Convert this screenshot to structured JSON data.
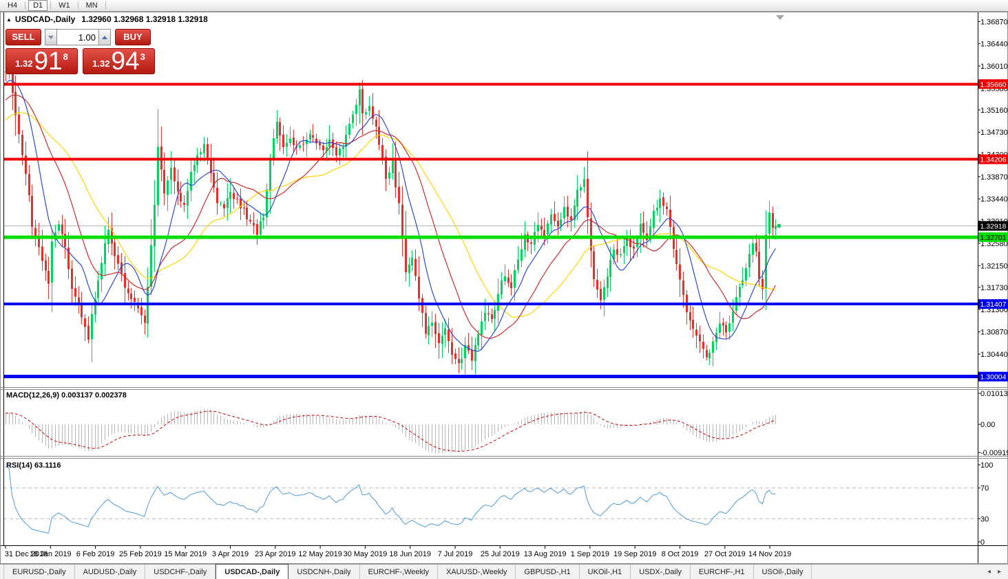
{
  "toolbar": {
    "timeframes": [
      {
        "label": "H4",
        "active": false
      },
      {
        "label": "D1",
        "active": true
      },
      {
        "label": "W1",
        "active": false
      },
      {
        "label": "MN",
        "active": false
      }
    ]
  },
  "chart_title": {
    "symbol": "USDCAD-,Daily",
    "ohlc": "1.32960 1.32968 1.32918 1.32918"
  },
  "trade_panel": {
    "sell_label": "SELL",
    "buy_label": "BUY",
    "volume": "1.00",
    "sell_price": {
      "small": "1.32",
      "big": "91",
      "sup": "8"
    },
    "buy_price": {
      "small": "1.32",
      "big": "94",
      "sup": "3"
    }
  },
  "indicator_labels": {
    "macd": "MACD(12,26,9) 0.003137 0.002378",
    "rsi": "RSI(14) 63.1116"
  },
  "tab_bar": {
    "active_index": 3,
    "tabs": [
      {
        "label": "EURUSD-,Daily"
      },
      {
        "label": "AUDUSD-,Daily"
      },
      {
        "label": "USDCHF-,Daily"
      },
      {
        "label": "USDCAD-,Daily"
      },
      {
        "label": "USDCNH-,Daily"
      },
      {
        "label": "EURCHF-,Weekly"
      },
      {
        "label": "XAUUSD-,Weekly"
      },
      {
        "label": "GBPUSD-,H1"
      },
      {
        "label": "UKOil-,H1"
      },
      {
        "label": "USDX-,Daily"
      },
      {
        "label": "EURCHF-,H1"
      },
      {
        "label": "USOil-,Daily"
      }
    ]
  },
  "chart_data": {
    "type": "candlestick",
    "symbol": "USDCAD-",
    "timeframe": "Daily",
    "candles_count": 234,
    "price_axis_ticks": [
      "1.36870",
      "1.36440",
      "1.36010",
      "1.35580",
      "1.35160",
      "1.34730",
      "1.34300",
      "1.33870",
      "1.33440",
      "1.33010",
      "1.32580",
      "1.32150",
      "1.31730",
      "1.31300",
      "1.30870",
      "1.30440"
    ],
    "date_labels": [
      "31 Dec 2018",
      "18 Jan 2019",
      "6 Feb 2019",
      "25 Feb 2019",
      "15 Mar 2019",
      "3 Apr 2019",
      "23 Apr 2019",
      "12 May 2019",
      "30 May 2019",
      "18 Jun 2019",
      "7 Jul 2019",
      "25 Jul 2019",
      "13 Aug 2019",
      "1 Sep 2019",
      "19 Sep 2019",
      "8 Oct 2019",
      "27 Oct 2019",
      "14 Nov 2019"
    ],
    "levels": [
      {
        "price": 1.3566,
        "label": "1.35660",
        "color": "#ee0000",
        "width": 4,
        "badge_bg": "#ee0000",
        "badge_fg": "#ffffff"
      },
      {
        "price": 1.34206,
        "label": "1.34206",
        "color": "#ee0000",
        "width": 4,
        "badge_bg": "#ee0000",
        "badge_fg": "#ffffff"
      },
      {
        "price": 1.32701,
        "label": "1.32701",
        "color": "#00dd00",
        "width": 5,
        "badge_bg": "#00dd00",
        "badge_fg": "#000000"
      },
      {
        "price": 1.31407,
        "label": "1.31407",
        "color": "#0000ee",
        "width": 4,
        "badge_bg": "#0000ee",
        "badge_fg": "#ffffff"
      },
      {
        "price": 1.30004,
        "label": "1.30004",
        "color": "#0000ee",
        "width": 5,
        "badge_bg": "#0000ee",
        "badge_fg": "#ffffff"
      }
    ],
    "current_price": {
      "value": 1.32918,
      "label": "1.32918",
      "line_color": "#b4b4b4",
      "badge_bg": "#000000",
      "badge_fg": "#ffffff"
    },
    "colors": {
      "bull": "#00d45e",
      "bear": "#e3302b",
      "ma_fast": "#2b49cc",
      "ma_mid": "#cc2a2a",
      "ma_slow": "#ffd400",
      "macd_hist": "#b5b5b5",
      "macd_signal": "#cc0000",
      "rsi_line": "#4f9bd5",
      "rsi_levels": "#b9b9b9"
    },
    "ma_periods": {
      "fast": 10,
      "mid": 21,
      "slow": 34
    },
    "macd": {
      "params": [
        12,
        26,
        9
      ],
      "value": 0.003137,
      "signal": 0.002378,
      "ticks": [
        {
          "text": "0.010134",
          "value": 0.010134
        },
        {
          "text": "0.00",
          "value": 0
        },
        {
          "text": "-0.009194",
          "value": -0.009194
        }
      ]
    },
    "rsi": {
      "period": 14,
      "value": 63.1116,
      "levels": [
        70,
        30
      ],
      "ticks": [
        {
          "text": "100",
          "value": 100
        },
        {
          "text": "70",
          "value": 70
        },
        {
          "text": "30",
          "value": 30
        },
        {
          "text": "0",
          "value": 0
        }
      ]
    },
    "close_waypoints": [
      [
        0,
        1.3588
      ],
      [
        1,
        1.3595
      ],
      [
        2,
        1.3555
      ],
      [
        4,
        1.347
      ],
      [
        6,
        1.3395
      ],
      [
        8,
        1.3295
      ],
      [
        10,
        1.3245
      ],
      [
        12,
        1.32
      ],
      [
        13,
        1.3175
      ],
      [
        14,
        1.326
      ],
      [
        16,
        1.33
      ],
      [
        18,
        1.325
      ],
      [
        20,
        1.3175
      ],
      [
        22,
        1.314
      ],
      [
        24,
        1.309
      ],
      [
        25,
        1.3077
      ],
      [
        26,
        1.312
      ],
      [
        28,
        1.318
      ],
      [
        30,
        1.326
      ],
      [
        31,
        1.329
      ],
      [
        33,
        1.323
      ],
      [
        35,
        1.3195
      ],
      [
        37,
        1.316
      ],
      [
        39,
        1.3145
      ],
      [
        41,
        1.312
      ],
      [
        42,
        1.3105
      ],
      [
        43,
        1.318
      ],
      [
        45,
        1.333
      ],
      [
        46,
        1.344
      ],
      [
        47,
        1.34
      ],
      [
        48,
        1.3355
      ],
      [
        50,
        1.34
      ],
      [
        52,
        1.3355
      ],
      [
        54,
        1.333
      ],
      [
        56,
        1.339
      ],
      [
        58,
        1.343
      ],
      [
        60,
        1.3445
      ],
      [
        62,
        1.339
      ],
      [
        64,
        1.334
      ],
      [
        66,
        1.333
      ],
      [
        68,
        1.3355
      ],
      [
        70,
        1.334
      ],
      [
        72,
        1.332
      ],
      [
        74,
        1.33
      ],
      [
        76,
        1.328
      ],
      [
        78,
        1.331
      ],
      [
        80,
        1.342
      ],
      [
        82,
        1.349
      ],
      [
        84,
        1.3445
      ],
      [
        86,
        1.3465
      ],
      [
        88,
        1.344
      ],
      [
        90,
        1.3455
      ],
      [
        92,
        1.3475
      ],
      [
        94,
        1.345
      ],
      [
        96,
        1.3435
      ],
      [
        98,
        1.346
      ],
      [
        100,
        1.343
      ],
      [
        102,
        1.3445
      ],
      [
        104,
        1.349
      ],
      [
        106,
        1.353
      ],
      [
        107,
        1.355
      ],
      [
        108,
        1.3505
      ],
      [
        110,
        1.352
      ],
      [
        112,
        1.349
      ],
      [
        113,
        1.345
      ],
      [
        115,
        1.3385
      ],
      [
        117,
        1.3415
      ],
      [
        119,
        1.333
      ],
      [
        121,
        1.3205
      ],
      [
        123,
        1.3235
      ],
      [
        125,
        1.3155
      ],
      [
        127,
        1.3085
      ],
      [
        129,
        1.311
      ],
      [
        131,
        1.3062
      ],
      [
        133,
        1.309
      ],
      [
        135,
        1.3045
      ],
      [
        137,
        1.302
      ],
      [
        139,
        1.3058
      ],
      [
        141,
        1.3035
      ],
      [
        143,
        1.308
      ],
      [
        145,
        1.313
      ],
      [
        147,
        1.3112
      ],
      [
        149,
        1.316
      ],
      [
        151,
        1.32
      ],
      [
        153,
        1.3175
      ],
      [
        155,
        1.323
      ],
      [
        157,
        1.3275
      ],
      [
        159,
        1.3252
      ],
      [
        161,
        1.33
      ],
      [
        163,
        1.3272
      ],
      [
        165,
        1.331
      ],
      [
        167,
        1.3285
      ],
      [
        169,
        1.333
      ],
      [
        171,
        1.33
      ],
      [
        173,
        1.3365
      ],
      [
        175,
        1.338
      ],
      [
        176,
        1.331
      ],
      [
        178,
        1.3185
      ],
      [
        180,
        1.3142
      ],
      [
        182,
        1.32
      ],
      [
        184,
        1.325
      ],
      [
        186,
        1.3232
      ],
      [
        188,
        1.3268
      ],
      [
        190,
        1.3245
      ],
      [
        192,
        1.329
      ],
      [
        194,
        1.3262
      ],
      [
        196,
        1.3318
      ],
      [
        198,
        1.334
      ],
      [
        200,
        1.3325
      ],
      [
        202,
        1.3245
      ],
      [
        204,
        1.3185
      ],
      [
        206,
        1.3125
      ],
      [
        208,
        1.3095
      ],
      [
        210,
        1.3065
      ],
      [
        212,
        1.3042
      ],
      [
        214,
        1.3062
      ],
      [
        216,
        1.3108
      ],
      [
        218,
        1.3082
      ],
      [
        220,
        1.313
      ],
      [
        222,
        1.3168
      ],
      [
        224,
        1.3215
      ],
      [
        226,
        1.3252
      ],
      [
        227,
        1.324
      ],
      [
        228,
        1.3185
      ],
      [
        229,
        1.3165
      ],
      [
        230,
        1.3275
      ],
      [
        231,
        1.3318
      ],
      [
        232,
        1.3288
      ],
      [
        233,
        1.32918
      ]
    ]
  }
}
